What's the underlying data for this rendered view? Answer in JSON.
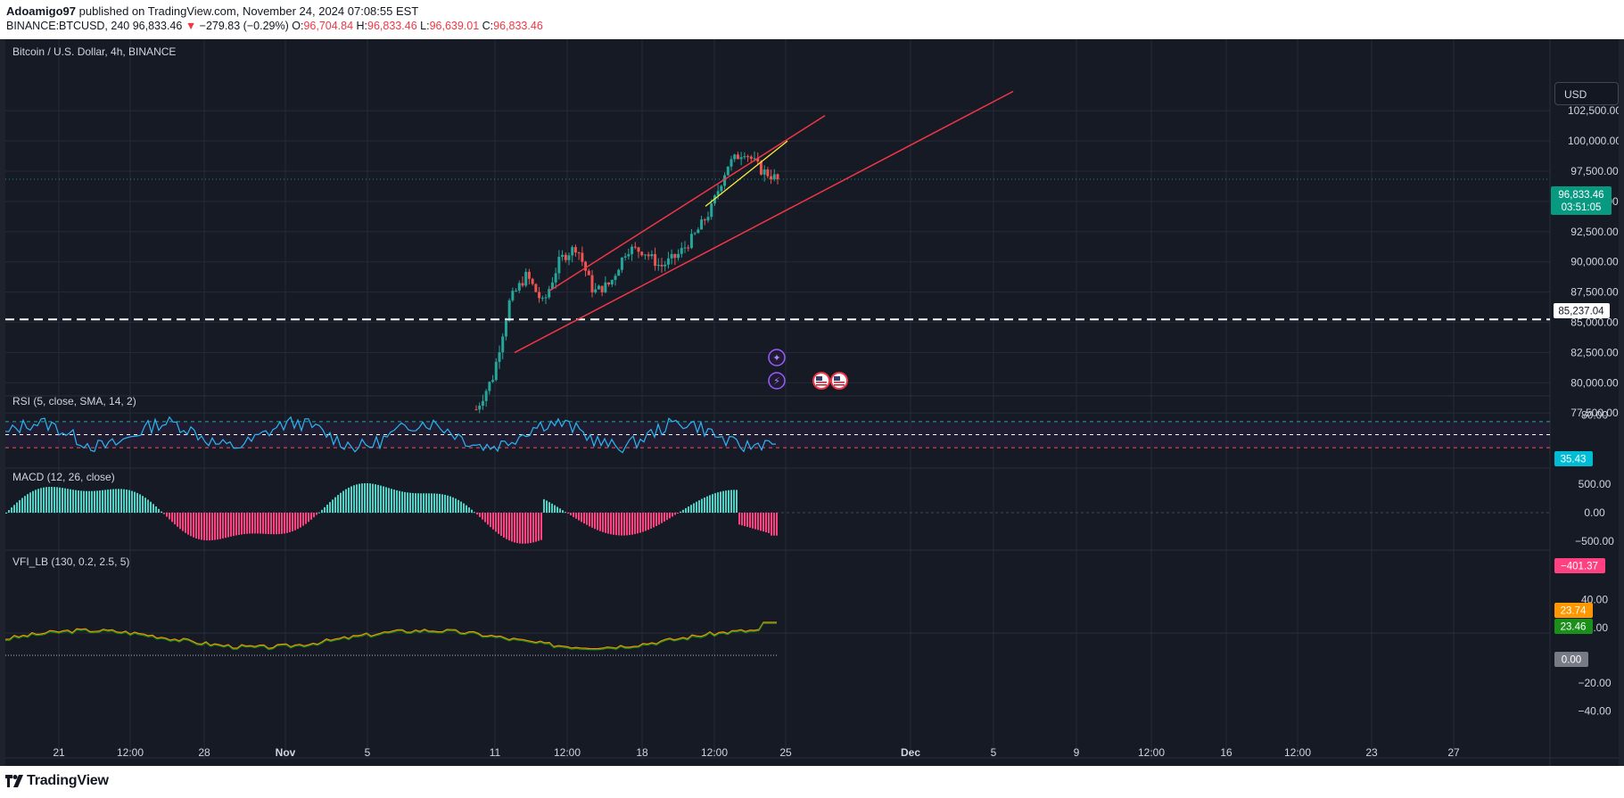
{
  "header": {
    "author": "Adoamigo97",
    "published": "published on TradingView.com, November 24, 2024 07:08:55 EST",
    "symbol": "BINANCE:BTCUSD, 240",
    "last": "96,833.46",
    "change": "−279.83 (−0.29%)",
    "o_label": "O:",
    "o": "96,704.84",
    "h_label": "H:",
    "h": "96,833.46",
    "l_label": "L:",
    "l": "96,639.01",
    "c_label": "C:",
    "c": "96,833.46"
  },
  "main": {
    "title": "Bitcoin / U.S. Dollar, 4h, BINANCE",
    "currency_button": "USD",
    "price_badge": "96,833.46",
    "countdown": "03:51:05",
    "hline_label": "85,237.04",
    "hline_value": 85237.04,
    "price_ticks": [
      "102,500.00",
      "100,000.00",
      "97,500.00",
      "95,000.00",
      "92,500.00",
      "90,000.00",
      "87,500.00",
      "85,000.00",
      "82,500.00",
      "80,000.00",
      "77,500.00"
    ]
  },
  "rsi": {
    "title": "RSI (5, close, SMA, 14, 2)",
    "tick": "80.00",
    "value": "35.43"
  },
  "macd": {
    "title": "MACD (12, 26, close)",
    "ticks": [
      "500.00",
      "0.00",
      "−500.00"
    ],
    "value": "−401.37"
  },
  "vfi": {
    "title": "VFI_LB (130, 0.2, 2.5, 5)",
    "ticks": [
      "40.00",
      "20.00",
      "−20.00",
      "−40.00"
    ],
    "value1": "23.74",
    "value2": "23.46",
    "value3": "0.00"
  },
  "x_axis": {
    "labels": [
      "21",
      "12:00",
      "28",
      "Nov",
      "5",
      "11",
      "12:00",
      "18",
      "12:00",
      "25",
      "Dec",
      "5",
      "9",
      "12:00",
      "16",
      "12:00",
      "23",
      "27"
    ]
  },
  "footer": {
    "logo_text": "TradingView"
  },
  "colors": {
    "up": "#26a69a",
    "down": "#ef5350",
    "channel": "#f23645",
    "trendline": "#ffeb3b",
    "rsi": "#22ab94",
    "macd_pos": "#4fd1c5",
    "macd_neg": "#ff4081",
    "vfi1": "#ff9800",
    "vfi2": "#1b8f1b"
  },
  "chart_data": {
    "type": "candlestick",
    "title": "Bitcoin / U.S. Dollar, 4h, BINANCE",
    "symbol": "BINANCE:BTCUSD",
    "interval": "240",
    "last_ohlc": {
      "open": 96704.84,
      "high": 96833.46,
      "low": 96639.01,
      "close": 96833.46
    },
    "change": -279.83,
    "change_pct": -0.29,
    "horizontal_line": 85237.04,
    "y_range": [
      76500,
      104300
    ],
    "close_path": [
      [
        "Nov 11",
        77800
      ],
      [
        "Nov 11 12:00",
        80500
      ],
      [
        "Nov 12",
        86800
      ],
      [
        "Nov 12 12:00",
        88900
      ],
      [
        "Nov 13",
        86500
      ],
      [
        "Nov 13 12:00",
        90200
      ],
      [
        "Nov 14",
        91300
      ],
      [
        "Nov 14 12:00",
        87500
      ],
      [
        "Nov 15",
        88200
      ],
      [
        "Nov 15 12:00",
        91100
      ],
      [
        "Nov 16",
        90900
      ],
      [
        "Nov 17",
        89600
      ],
      [
        "Nov 18",
        90500
      ],
      [
        "Nov 19",
        92100
      ],
      [
        "Nov 20",
        94300
      ],
      [
        "Nov 21",
        98000
      ],
      [
        "Nov 22",
        99200
      ],
      [
        "Nov 23",
        97600
      ],
      [
        "Nov 24",
        96833.46
      ]
    ],
    "rising_channel": {
      "upper": [
        [
          87600,
          93300
        ],
        [
          102100,
          102700
        ]
      ],
      "lower": [
        [
          82500,
          83000
        ],
        [
          104100,
          104300
        ]
      ]
    },
    "indicators": {
      "RSI": {
        "params": "5, close, SMA, 14, 2",
        "value": 35.43,
        "levels": [
          70,
          50,
          30
        ]
      },
      "MACD": {
        "params": "12, 26, close",
        "value": -401.37
      },
      "VFI_LB": {
        "params": "130, 0.2, 2.5, 5",
        "values": [
          23.74,
          23.46,
          0.0
        ]
      }
    }
  }
}
